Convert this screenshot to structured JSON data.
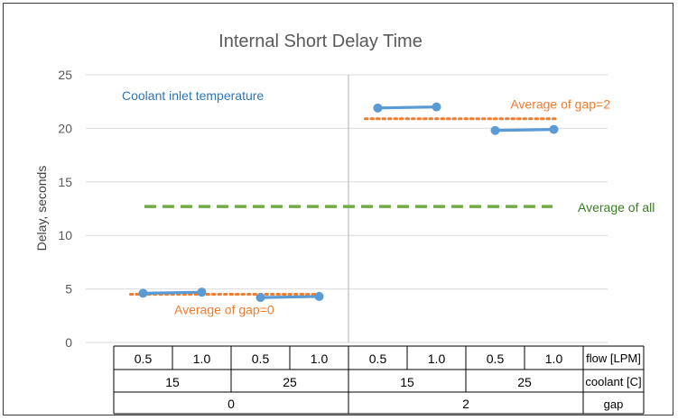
{
  "chart_data": {
    "type": "line",
    "title": "Internal Short Delay Time",
    "ylabel": "Delay, seconds",
    "ylim": [
      0,
      25
    ],
    "yticks": [
      0,
      5,
      10,
      15,
      20,
      25
    ],
    "grid": true,
    "categories": [
      {
        "flow": "0.5",
        "coolant": "15",
        "gap": "0"
      },
      {
        "flow": "1.0",
        "coolant": "15",
        "gap": "0"
      },
      {
        "flow": "0.5",
        "coolant": "25",
        "gap": "0"
      },
      {
        "flow": "1.0",
        "coolant": "25",
        "gap": "0"
      },
      {
        "flow": "0.5",
        "coolant": "15",
        "gap": "2"
      },
      {
        "flow": "1.0",
        "coolant": "15",
        "gap": "2"
      },
      {
        "flow": "0.5",
        "coolant": "25",
        "gap": "2"
      },
      {
        "flow": "1.0",
        "coolant": "25",
        "gap": "2"
      }
    ],
    "coolant_groups": [
      {
        "label": "15",
        "span": [
          0,
          1
        ]
      },
      {
        "label": "25",
        "span": [
          2,
          3
        ]
      },
      {
        "label": "15",
        "span": [
          4,
          5
        ]
      },
      {
        "label": "25",
        "span": [
          6,
          7
        ]
      }
    ],
    "gap_groups": [
      {
        "label": "0",
        "span": [
          0,
          3
        ]
      },
      {
        "label": "2",
        "span": [
          4,
          7
        ]
      }
    ],
    "row_labels": [
      "flow [LPM]",
      "coolant [C]",
      "gap"
    ],
    "segments": [
      {
        "x": [
          0,
          1
        ],
        "values": [
          4.6,
          4.7
        ]
      },
      {
        "x": [
          2,
          3
        ],
        "values": [
          4.2,
          4.3
        ]
      },
      {
        "x": [
          4,
          5
        ],
        "values": [
          21.9,
          22.0
        ]
      },
      {
        "x": [
          6,
          7
        ],
        "values": [
          19.8,
          19.9
        ]
      }
    ],
    "averages": [
      {
        "label": "Average of gap=0",
        "value": 4.5,
        "span": [
          0,
          3
        ],
        "color": "#ED7D31",
        "style": "dotted"
      },
      {
        "label": "Average of gap=2",
        "value": 20.9,
        "span": [
          4,
          7
        ],
        "color": "#ED7D31",
        "style": "dotted"
      },
      {
        "label": "Average of all",
        "value": 12.7,
        "span": [
          0,
          7
        ],
        "color": "#70AD47",
        "style": "dashed"
      }
    ],
    "annotation": "Coolant inlet temperature",
    "colors": {
      "series": "#5B9BD5",
      "annotation": "#2E75B6",
      "average_all_label": "#3A7D22",
      "average_gap_label": "#ED7D31"
    }
  }
}
